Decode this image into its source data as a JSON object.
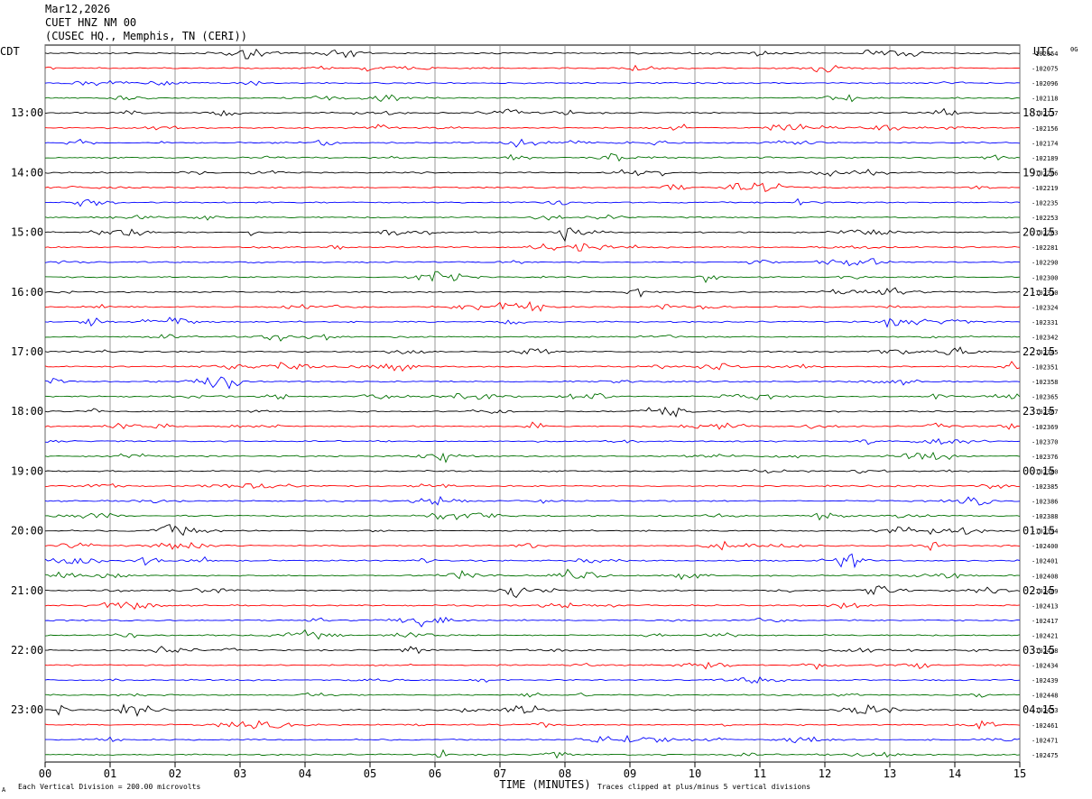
{
  "header": {
    "date": "Mar12,2026",
    "station": "CUET HNZ NM 00",
    "location": "(CUSEC HQ., Memphis, TN (CERI))"
  },
  "left_zone_label": "CDT",
  "right_zone_label": "UTC",
  "right_top_small": "0G",
  "footer": {
    "vertical_division": "Each Vertical Division =  200.00 microvolts",
    "clip_note": "Traces clipped at plus/minus 5 vertical divisions",
    "corner_mark": "A"
  },
  "colors": {
    "trace_cycle": [
      "#000000",
      "#ff0000",
      "#0000ff",
      "#007000"
    ],
    "grid": "#808080"
  },
  "chart_data": {
    "type": "line",
    "title": "CUET HNZ NM 00",
    "xlabel": "TIME (MINUTES)",
    "ylabel": "",
    "xlim": [
      0,
      15
    ],
    "x_ticks": [
      "00",
      "01",
      "02",
      "03",
      "04",
      "05",
      "06",
      "07",
      "08",
      "09",
      "10",
      "11",
      "12",
      "13",
      "14",
      "15"
    ],
    "traces_per_hour": 4,
    "trace_count": 48,
    "left_hour_labels": [
      "13:00",
      "14:00",
      "15:00",
      "16:00",
      "17:00",
      "18:00",
      "19:00",
      "20:00",
      "21:00",
      "22:00",
      "23:00"
    ],
    "right_hour_labels": [
      "18:15",
      "19:15",
      "20:15",
      "21:15",
      "22:15",
      "23:15",
      "00:15",
      "01:15",
      "02:15",
      "03:15",
      "04:15"
    ],
    "trace_values": [
      "-102054",
      "-102075",
      "-102096",
      "-102118",
      "-102137",
      "-102156",
      "-102174",
      "-102189",
      "-102206",
      "-102219",
      "-102235",
      "-102253",
      "-102263",
      "-102281",
      "-102290",
      "-102300",
      "-102310",
      "-102324",
      "-102331",
      "-102342",
      "-102345",
      "-102351",
      "-102358",
      "-102365",
      "-102367",
      "-102369",
      "-102370",
      "-102376",
      "-102380",
      "-102385",
      "-102386",
      "-102388",
      "-102394",
      "-102400",
      "-102401",
      "-102408",
      "-102409",
      "-102413",
      "-102417",
      "-102421",
      "-102428",
      "-102434",
      "-102439",
      "-102448",
      "-102453",
      "-102461",
      "-102471",
      "-102475"
    ],
    "grid": true
  }
}
